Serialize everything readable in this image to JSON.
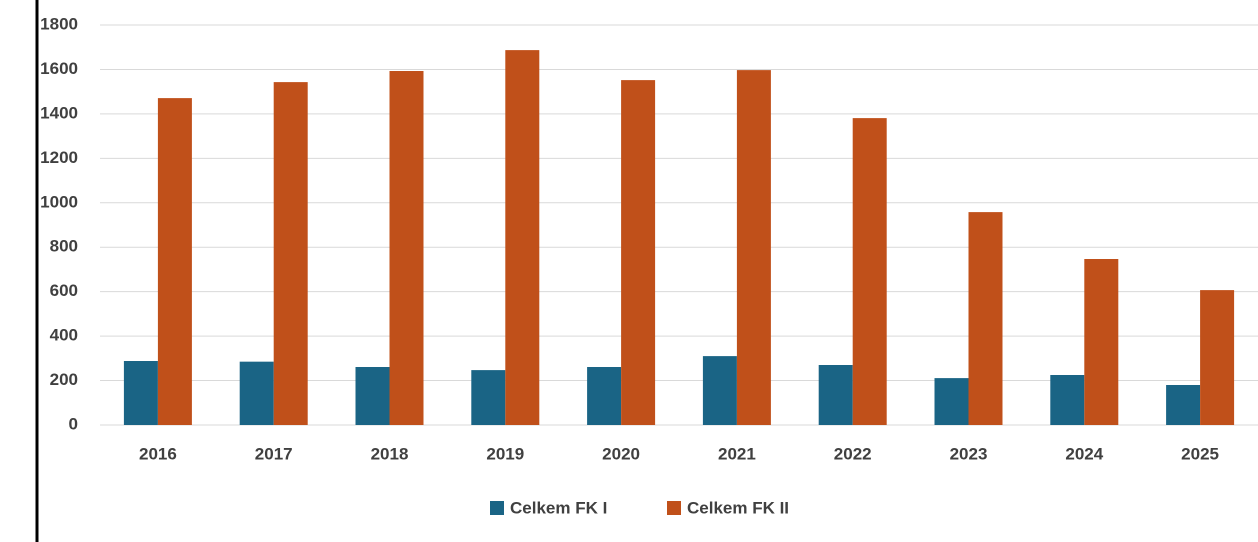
{
  "chart_data": {
    "type": "bar",
    "categories": [
      "2016",
      "2017",
      "2018",
      "2019",
      "2020",
      "2021",
      "2022",
      "2023",
      "2024",
      "2025"
    ],
    "series": [
      {
        "name": "Celkem FK I",
        "color": "#1a6485",
        "values": [
          288,
          285,
          261,
          247,
          261,
          310,
          270,
          211,
          225,
          180
        ]
      },
      {
        "name": "Celkem FK II",
        "color": "#c0501a",
        "values": [
          1471,
          1543,
          1593,
          1687,
          1552,
          1597,
          1381,
          958,
          747,
          607
        ]
      }
    ],
    "ylim": [
      0,
      1800
    ],
    "yticks": [
      0,
      200,
      400,
      600,
      800,
      1000,
      1200,
      1400,
      1600,
      1800
    ],
    "grid": true,
    "legend": "bottom"
  }
}
